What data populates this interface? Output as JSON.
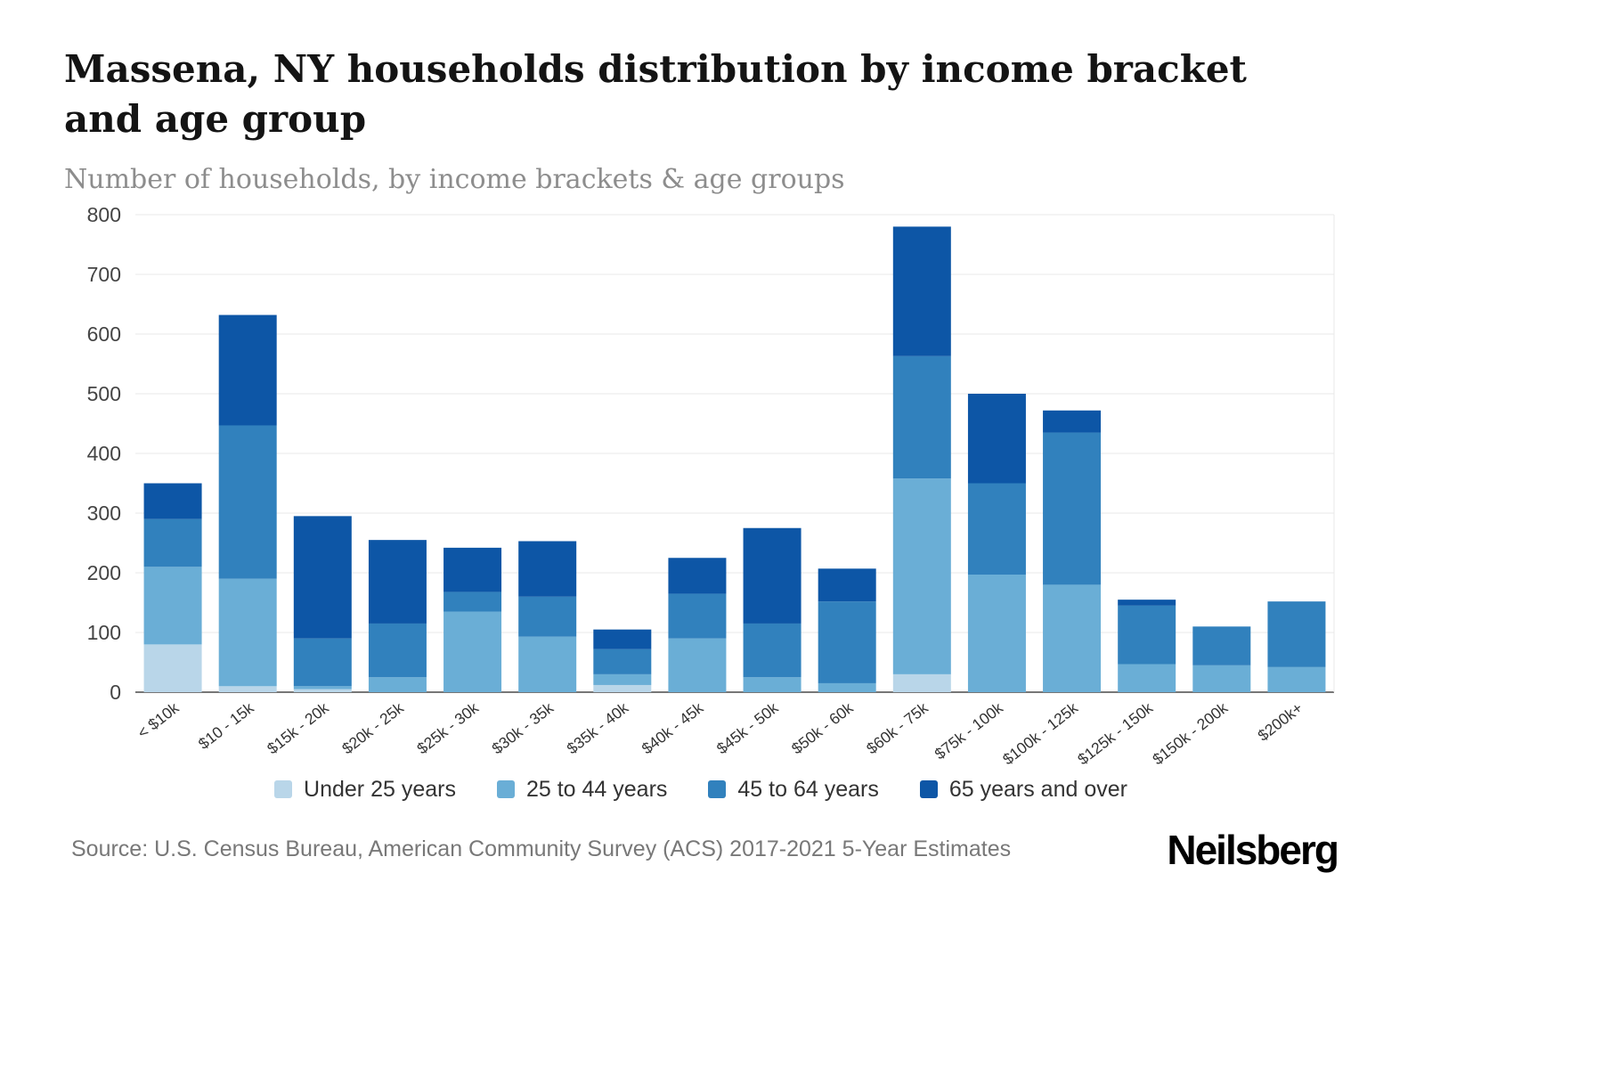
{
  "header": {
    "title": "Massena, NY households distribution by income bracket and age group",
    "subtitle": "Number of households, by income brackets & age groups"
  },
  "chart_data": {
    "type": "bar",
    "stacked": true,
    "title": "Massena, NY households distribution by income bracket and age group",
    "xlabel": "",
    "ylabel": "",
    "ylim": [
      0,
      800
    ],
    "ytick_interval": 100,
    "grid": true,
    "legend_position": "bottom",
    "categories": [
      "< $10k",
      "$10 - 15k",
      "$15k - 20k",
      "$20k - 25k",
      "$25k - 30k",
      "$30k - 35k",
      "$35k - 40k",
      "$40k - 45k",
      "$45k - 50k",
      "$50k - 60k",
      "$60k - 75k",
      "$75k - 100k",
      "$100k - 125k",
      "$125k - 150k",
      "$150k - 200k",
      "$200k+"
    ],
    "series": [
      {
        "name": "Under 25 years",
        "color": "#b9d6e9",
        "values": [
          80,
          10,
          5,
          0,
          0,
          0,
          12,
          0,
          0,
          0,
          30,
          0,
          0,
          0,
          0,
          0
        ]
      },
      {
        "name": "25 to 44 years",
        "color": "#6aaed6",
        "values": [
          130,
          180,
          5,
          25,
          135,
          93,
          18,
          90,
          25,
          15,
          328,
          197,
          180,
          47,
          45,
          42
        ]
      },
      {
        "name": "45 to 64 years",
        "color": "#3181bd",
        "values": [
          80,
          257,
          80,
          90,
          33,
          67,
          42,
          75,
          90,
          137,
          205,
          153,
          255,
          98,
          65,
          110
        ]
      },
      {
        "name": "65 years and over",
        "color": "#0d56a6",
        "values": [
          60,
          185,
          205,
          140,
          74,
          93,
          33,
          60,
          160,
          55,
          217,
          150,
          37,
          10,
          0,
          0
        ]
      }
    ],
    "axis_style": {
      "gridline_color": "#e8e8e8",
      "baseline_color": "#4a4a4a",
      "tick_label_color": "#444444",
      "category_label_color": "#333333"
    }
  },
  "footer": {
    "source": "Source: U.S. Census Bureau, American Community Survey (ACS) 2017-2021 5-Year Estimates",
    "brand": "Neilsberg"
  }
}
